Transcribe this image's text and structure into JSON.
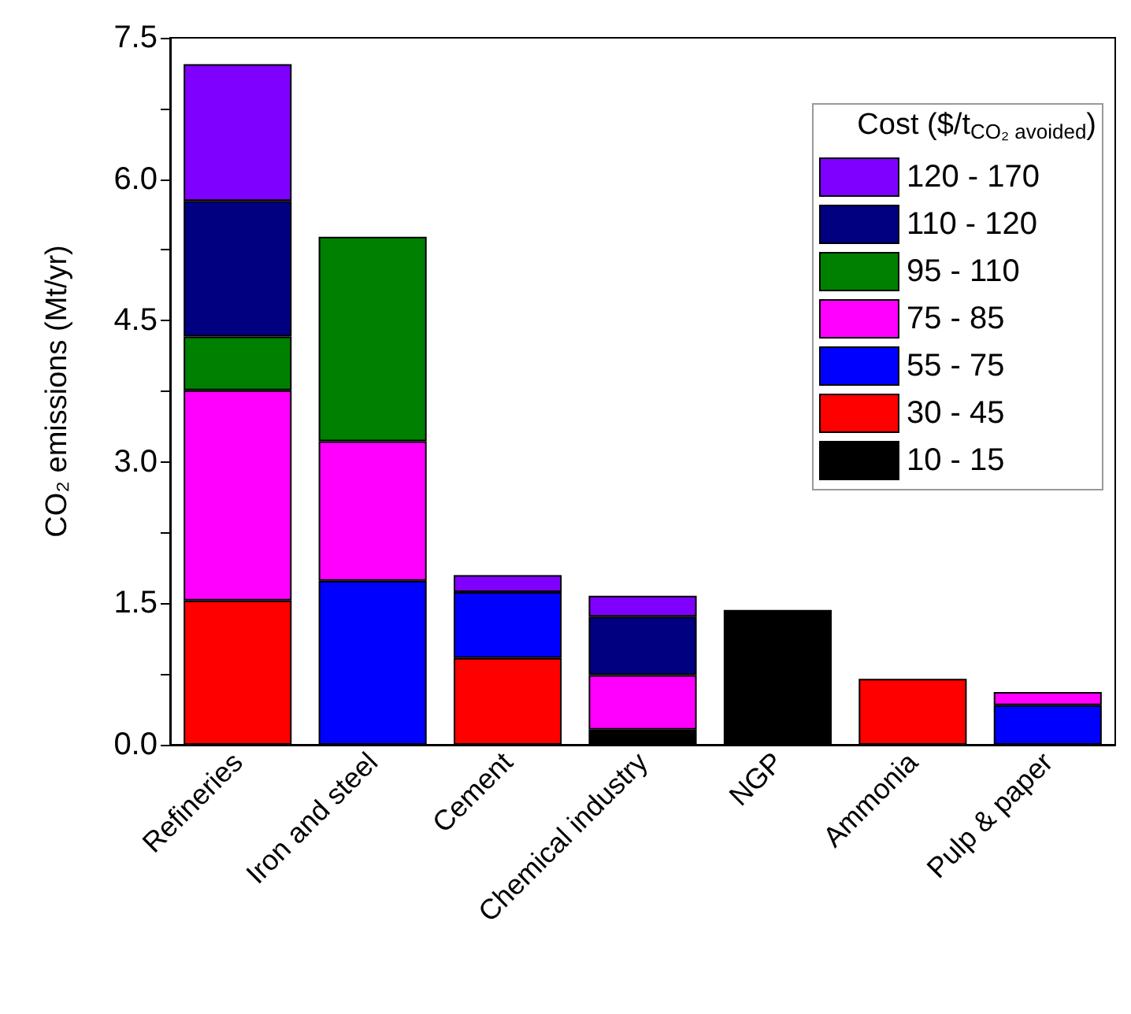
{
  "chart_data": {
    "type": "bar",
    "stacked": true,
    "ylabel": "CO₂ emissions (Mt/yr)",
    "legend_title": "Cost ($/t$_{CO₂ avoided}$)",
    "legend": "top right",
    "categories": [
      "Refineries",
      "Iron and steel",
      "Cement",
      "Chemical industry",
      "NGP",
      "Ammonia",
      "Pulp & paper"
    ],
    "ylim": [
      0,
      7.5
    ],
    "yticks": [
      {
        "value": 0,
        "label": "0.0"
      },
      {
        "value": 0.75,
        "label": null
      },
      1.5,
      {
        "value": 2.25,
        "label": null
      },
      {
        "value": 3,
        "label": "3.0"
      },
      {
        "value": 3.75,
        "label": null
      },
      4.5,
      {
        "value": 5.25,
        "label": null
      },
      {
        "value": 6,
        "label": "6.0"
      },
      {
        "value": 6.75,
        "label": null
      },
      7.5
    ],
    "series": [
      {
        "name": "10 - 15",
        "color": "#000000",
        "values": [
          null,
          null,
          null,
          0.16,
          1.43,
          null,
          null
        ]
      },
      {
        "name": "30 - 45",
        "color": "#ff0000",
        "values": [
          1.53,
          null,
          0.92,
          null,
          null,
          0.7,
          null
        ]
      },
      {
        "name": "55 - 75",
        "color": "#0000ff",
        "values": [
          null,
          1.74,
          0.7,
          null,
          null,
          null,
          0.42
        ]
      },
      {
        "name": "75 - 85",
        "color": "#ff00ff",
        "values": [
          2.23,
          1.48,
          null,
          0.58,
          null,
          null,
          0.14
        ]
      },
      {
        "name": "95 - 110",
        "color": "#008000",
        "values": [
          0.57,
          2.17,
          null,
          null,
          null,
          null,
          null
        ]
      },
      {
        "name": "110 - 120",
        "color": "#000080",
        "values": [
          1.44,
          null,
          null,
          0.62,
          null,
          null,
          null
        ]
      },
      {
        "name": "120 - 170",
        "color": "#8000ff",
        "values": [
          1.45,
          null,
          0.18,
          0.22,
          null,
          null,
          null
        ]
      }
    ]
  }
}
